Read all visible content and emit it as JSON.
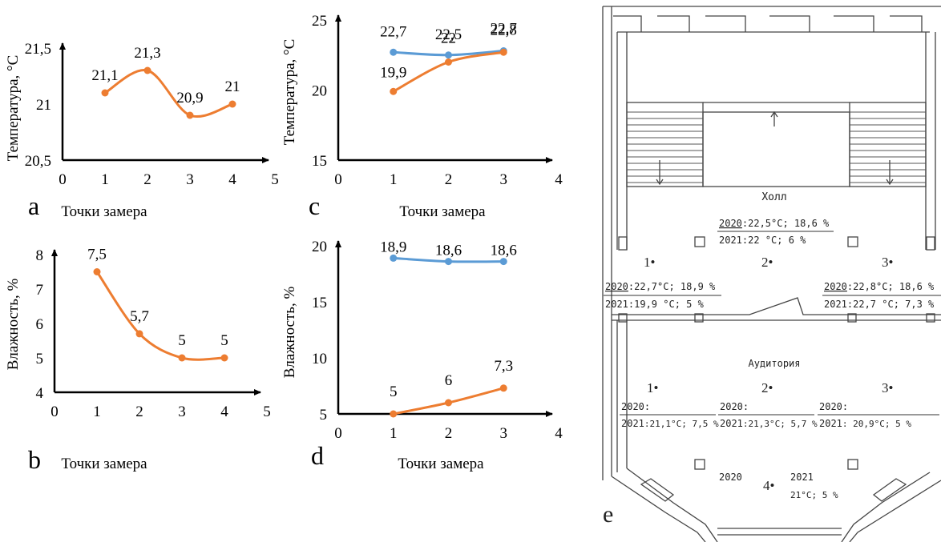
{
  "chart_data": [
    {
      "type": "line",
      "panel": "a",
      "xlabel": "Точки замера",
      "ylabel": "Температура, °С",
      "xlim": [
        0,
        5
      ],
      "ylim": [
        20.5,
        21.5
      ],
      "xticks": [
        "0",
        "1",
        "2",
        "3",
        "4",
        "5"
      ],
      "yticks": [
        "20,5",
        "21",
        "21,5"
      ],
      "series": [
        {
          "color": "#ed7d31",
          "x": [
            1,
            2,
            3,
            4
          ],
          "values": [
            21.1,
            21.3,
            20.9,
            21.0
          ],
          "labels": [
            "21,1",
            "21,3",
            "20,9",
            "21"
          ]
        }
      ]
    },
    {
      "type": "line",
      "panel": "b",
      "xlabel": "Точки замера",
      "ylabel": "Влажность, %",
      "xlim": [
        0,
        5
      ],
      "ylim": [
        4,
        8
      ],
      "xticks": [
        "0",
        "1",
        "2",
        "3",
        "4",
        "5"
      ],
      "yticks": [
        "4",
        "5",
        "6",
        "7",
        "8"
      ],
      "series": [
        {
          "color": "#ed7d31",
          "x": [
            1,
            2,
            3,
            4
          ],
          "values": [
            7.5,
            5.7,
            5.0,
            5.0
          ],
          "labels": [
            "7,5",
            "5,7",
            "5",
            "5"
          ]
        }
      ]
    },
    {
      "type": "line",
      "panel": "c",
      "xlabel": "Точки замера",
      "ylabel": "Температура, °С",
      "xlim": [
        0,
        4
      ],
      "ylim": [
        15,
        25
      ],
      "xticks": [
        "0",
        "1",
        "2",
        "3",
        "4"
      ],
      "yticks": [
        "15",
        "20",
        "25"
      ],
      "series": [
        {
          "color": "#5b9bd5",
          "x": [
            1,
            2,
            3
          ],
          "values": [
            22.7,
            22.5,
            22.8
          ],
          "labels": [
            "22,7",
            "22,5",
            "22,8"
          ]
        },
        {
          "color": "#ed7d31",
          "x": [
            1,
            2,
            3
          ],
          "values": [
            19.9,
            22.0,
            22.7
          ],
          "labels": [
            "19,9",
            "22",
            "22,7"
          ]
        }
      ]
    },
    {
      "type": "line",
      "panel": "d",
      "xlabel": "Точки замера",
      "ylabel": "Влажность, %",
      "xlim": [
        0,
        4
      ],
      "ylim": [
        5,
        20
      ],
      "xticks": [
        "0",
        "1",
        "2",
        "3",
        "4"
      ],
      "yticks": [
        "5",
        "10",
        "15",
        "20"
      ],
      "series": [
        {
          "color": "#5b9bd5",
          "x": [
            1,
            2,
            3
          ],
          "values": [
            18.9,
            18.6,
            18.6
          ],
          "labels": [
            "18,9",
            "18,6",
            "18,6"
          ]
        },
        {
          "color": "#ed7d31",
          "x": [
            1,
            2,
            3
          ],
          "values": [
            5.0,
            6.0,
            7.3
          ],
          "labels": [
            "5",
            "6",
            "7,3"
          ]
        }
      ]
    }
  ],
  "plan": {
    "panel_letter": "e",
    "hall_label": "Холл",
    "auditorium_label": "Аудитория",
    "hall_points": [
      {
        "num": "1•",
        "y2020": "2020",
        "v2020": ":22,7°С; 18,9 %",
        "y2021": "2021",
        "v2021": ":19,9 °С; 5 %"
      },
      {
        "num": "2•",
        "y2020": "2020",
        "v2020": ":22,5°С; 18,6 %",
        "y2021": "2021",
        "v2021": ":22 °С; 6 %"
      },
      {
        "num": "3•",
        "y2020": "2020",
        "v2020": ":22,8°С; 18,6 %",
        "y2021": "2021",
        "v2021": ":22,7 °С; 7,3 %"
      }
    ],
    "aud_points": [
      {
        "num": "1•",
        "y2020": "2020:",
        "y2021": "2021",
        "v2021": ":21,1°С; 7,5 %"
      },
      {
        "num": "2•",
        "y2020": "2020:",
        "y2021": "2021",
        "v2021": ":21,3°С; 5,7 %"
      },
      {
        "num": "3•",
        "y2020": "2020:",
        "y2021": "2021",
        "v2021": ": 20,9°С; 5 %"
      }
    ],
    "point4": {
      "num": "4•",
      "y2020": "2020",
      "y2021": "2021",
      "v2021": "21°С; 5 %"
    }
  }
}
